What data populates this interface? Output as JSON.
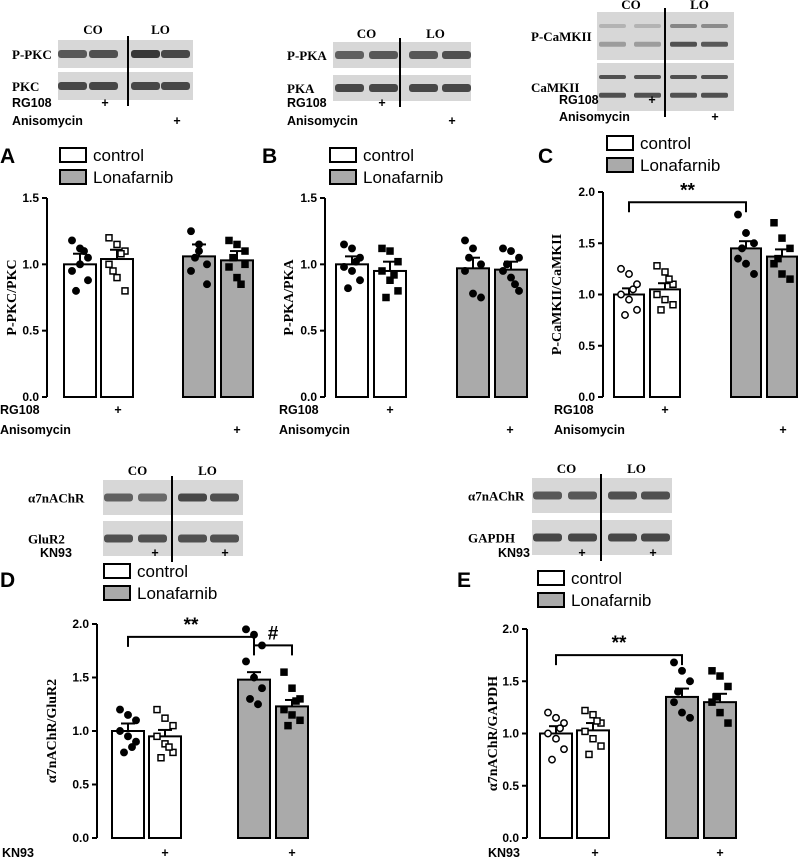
{
  "colors": {
    "control": "#ffffff",
    "treated": "#aaaaaa",
    "stroke": "#000000",
    "blot_bg": "#d7d7d7",
    "band": "#2e2e2e"
  },
  "blots": [
    {
      "id": "pkc",
      "groups": [
        "CO",
        "LO"
      ],
      "rows": [
        "P-PKC",
        "PKC"
      ],
      "conditions": [
        {
          "label": "RG108",
          "marks": [
            "+"
          ]
        },
        {
          "label": "Anisomycin",
          "marks": [
            "+"
          ]
        }
      ]
    },
    {
      "id": "pka",
      "groups": [
        "CO",
        "LO"
      ],
      "rows": [
        "P-PKA",
        "PKA"
      ],
      "conditions": [
        {
          "label": "RG108",
          "marks": [
            "+"
          ]
        },
        {
          "label": "Anisomycin",
          "marks": [
            "+"
          ]
        }
      ]
    },
    {
      "id": "camk",
      "groups": [
        "CO",
        "LO"
      ],
      "rows": [
        "P-CaMKII",
        "CaMKII"
      ],
      "conditions": [
        {
          "label": "RG108",
          "marks": [
            "+"
          ]
        },
        {
          "label": "Anisomycin",
          "marks": [
            "+"
          ]
        }
      ]
    },
    {
      "id": "a7glur",
      "groups": [
        "CO",
        "LO"
      ],
      "rows": [
        "α7nAChR",
        "GluR2"
      ],
      "conditions": [
        {
          "label": "KN93",
          "marks": [
            "+",
            "+"
          ]
        }
      ]
    },
    {
      "id": "a7gapdh",
      "groups": [
        "CO",
        "LO"
      ],
      "rows": [
        "α7nAChR",
        "GAPDH"
      ],
      "conditions": [
        {
          "label": "KN93",
          "marks": [
            "+",
            "+"
          ]
        }
      ]
    }
  ],
  "chart_data": [
    {
      "panel": "A",
      "type": "bar",
      "ylabel": "P-PKC/PKC",
      "ylim": [
        0,
        1.5
      ],
      "yticks": [
        "0.0",
        "0.5",
        "1.0",
        "1.5"
      ],
      "legend": [
        "control",
        "Lonafarnib"
      ],
      "bars": [
        {
          "series": "control",
          "value": 1.0,
          "sem": 0.08,
          "points": [
            1.18,
            1.12,
            1.05,
            0.95,
            1.0,
            0.88,
            0.8,
            1.1
          ]
        },
        {
          "series": "control",
          "value": 1.04,
          "sem": 0.07,
          "points": [
            1.2,
            1.15,
            1.1,
            1.0,
            0.9,
            0.8,
            0.95,
            1.08
          ]
        },
        {
          "series": "Lonafarnib",
          "value": 1.06,
          "sem": 0.09,
          "points": [
            1.25,
            1.1,
            1.0,
            0.95,
            1.15,
            0.85,
            1.05
          ]
        },
        {
          "series": "Lonafarnib",
          "value": 1.03,
          "sem": 0.07,
          "points": [
            1.18,
            1.15,
            1.1,
            0.98,
            0.9,
            1.0,
            1.05,
            0.85
          ]
        }
      ],
      "conditions": [
        {
          "label": "RG108",
          "marks": [
            "+"
          ]
        },
        {
          "label": "Anisomycin",
          "marks": [
            "+"
          ]
        }
      ],
      "significance": []
    },
    {
      "panel": "B",
      "type": "bar",
      "ylabel": "P-PKA/PKA",
      "ylim": [
        0,
        1.5
      ],
      "yticks": [
        "0.0",
        "0.5",
        "1.0",
        "1.5"
      ],
      "legend": [
        "control",
        "Lonafarnib"
      ],
      "bars": [
        {
          "series": "control",
          "value": 1.0,
          "sem": 0.06,
          "points": [
            1.15,
            1.12,
            1.05,
            0.98,
            0.95,
            0.88,
            0.82,
            1.02
          ]
        },
        {
          "series": "control",
          "value": 0.95,
          "sem": 0.07,
          "points": [
            1.12,
            1.1,
            1.02,
            0.95,
            0.88,
            0.8,
            0.75,
            0.92
          ]
        },
        {
          "series": "Lonafarnib",
          "value": 0.97,
          "sem": 0.08,
          "points": [
            1.18,
            1.12,
            1.0,
            0.95,
            0.78,
            0.75,
            1.05
          ]
        },
        {
          "series": "Lonafarnib",
          "value": 0.96,
          "sem": 0.06,
          "points": [
            1.12,
            1.1,
            1.05,
            0.95,
            0.9,
            0.8,
            1.0,
            0.85
          ]
        }
      ],
      "conditions": [
        {
          "label": "RG108",
          "marks": [
            "+"
          ]
        },
        {
          "label": "Anisomycin",
          "marks": [
            "+"
          ]
        }
      ],
      "significance": []
    },
    {
      "panel": "C",
      "type": "bar",
      "ylabel": "P-CaMKII/CaMKII",
      "ylim": [
        0,
        2.0
      ],
      "yticks": [
        "0.0",
        "0.5",
        "1.0",
        "1.5",
        "2.0"
      ],
      "legend": [
        "control",
        "Lonafarnib"
      ],
      "bars": [
        {
          "series": "control",
          "value": 1.0,
          "sem": 0.06,
          "points": [
            1.25,
            1.2,
            1.1,
            1.0,
            0.95,
            0.85,
            0.8,
            1.05
          ]
        },
        {
          "series": "control",
          "value": 1.05,
          "sem": 0.06,
          "points": [
            1.28,
            1.22,
            1.1,
            1.0,
            0.95,
            0.9,
            0.85,
            1.15
          ]
        },
        {
          "series": "Lonafarnib",
          "value": 1.45,
          "sem": 0.07,
          "points": [
            1.78,
            1.6,
            1.5,
            1.35,
            1.3,
            1.2,
            1.45
          ]
        },
        {
          "series": "Lonafarnib",
          "value": 1.37,
          "sem": 0.07,
          "points": [
            1.7,
            1.55,
            1.45,
            1.3,
            1.2,
            1.15,
            1.35
          ]
        }
      ],
      "conditions": [
        {
          "label": "RG108",
          "marks": [
            "+"
          ]
        },
        {
          "label": "Anisomycin",
          "marks": [
            "+"
          ]
        }
      ],
      "significance": [
        {
          "from": 0,
          "to": 2,
          "y": 1.9,
          "label": "**"
        }
      ]
    },
    {
      "panel": "D",
      "type": "bar",
      "ylabel": "α7nAChR/GluR2",
      "ylim": [
        0,
        2.0
      ],
      "yticks": [
        "0.0",
        "0.5",
        "1.0",
        "1.5",
        "2.0"
      ],
      "legend": [
        "control",
        "Lonafarnib"
      ],
      "bars": [
        {
          "series": "control",
          "value": 1.0,
          "sem": 0.07,
          "points": [
            1.2,
            1.15,
            1.1,
            1.0,
            0.95,
            0.9,
            0.8,
            0.85
          ]
        },
        {
          "series": "control",
          "value": 0.95,
          "sem": 0.06,
          "points": [
            1.2,
            1.12,
            1.05,
            0.95,
            0.88,
            0.8,
            0.75,
            0.85
          ]
        },
        {
          "series": "Lonafarnib",
          "value": 1.48,
          "sem": 0.07,
          "points": [
            1.95,
            1.9,
            1.8,
            1.65,
            1.5,
            1.4,
            1.3,
            1.25
          ]
        },
        {
          "series": "Lonafarnib",
          "value": 1.23,
          "sem": 0.06,
          "points": [
            1.55,
            1.4,
            1.3,
            1.2,
            1.15,
            1.1,
            1.05,
            1.28
          ]
        }
      ],
      "conditions": [
        {
          "label": "KN93",
          "marks": [
            "+",
            "+"
          ]
        }
      ],
      "significance": [
        {
          "from": 0,
          "to": 2,
          "y": 1.88,
          "label": "**"
        },
        {
          "from": 2,
          "to": 3,
          "y": 1.8,
          "label": "#"
        }
      ]
    },
    {
      "panel": "E",
      "type": "bar",
      "ylabel": "α7nAChR/GAPDH",
      "ylim": [
        0,
        2.0
      ],
      "yticks": [
        "0.0",
        "0.5",
        "1.0",
        "1.5",
        "2.0"
      ],
      "legend": [
        "control",
        "Lonafarnib"
      ],
      "bars": [
        {
          "series": "control",
          "value": 1.0,
          "sem": 0.07,
          "points": [
            1.2,
            1.15,
            1.1,
            1.0,
            0.95,
            0.85,
            0.75,
            1.05
          ]
        },
        {
          "series": "control",
          "value": 1.03,
          "sem": 0.07,
          "points": [
            1.22,
            1.18,
            1.1,
            1.02,
            0.95,
            0.88,
            0.8,
            1.12
          ]
        },
        {
          "series": "Lonafarnib",
          "value": 1.35,
          "sem": 0.08,
          "points": [
            1.68,
            1.6,
            1.5,
            1.3,
            1.2,
            1.15,
            1.4
          ]
        },
        {
          "series": "Lonafarnib",
          "value": 1.3,
          "sem": 0.08,
          "points": [
            1.6,
            1.55,
            1.45,
            1.3,
            1.2,
            1.1,
            1.35
          ]
        }
      ],
      "conditions": [
        {
          "label": "KN93",
          "marks": [
            "+",
            "+"
          ]
        }
      ],
      "significance": [
        {
          "from": 0,
          "to": 2,
          "y": 1.75,
          "label": "**"
        }
      ]
    }
  ]
}
